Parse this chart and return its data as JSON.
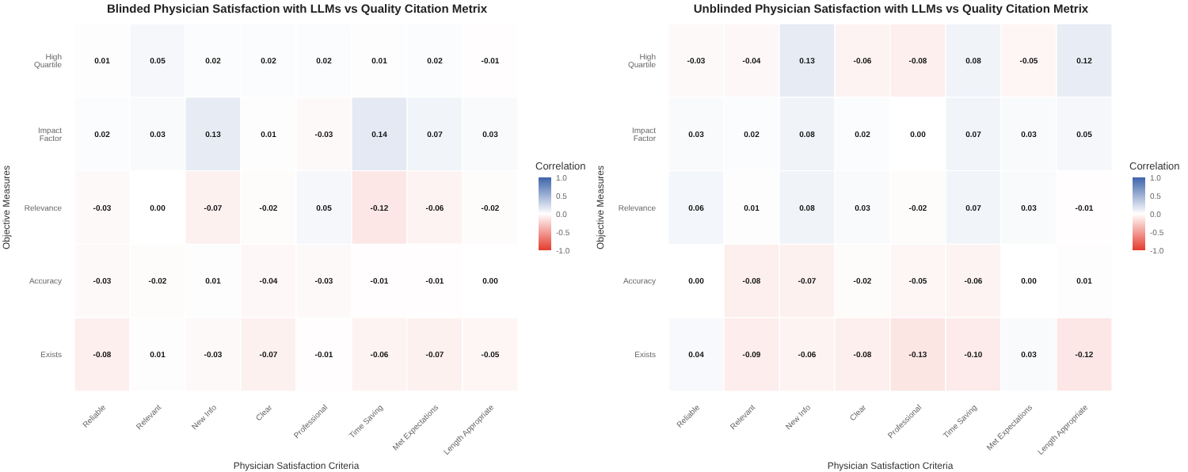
{
  "chart_data": [
    {
      "type": "heatmap",
      "title": "Blinded Physician Satisfaction with LLMs vs Quality Citation Metrix",
      "xlabel": "Physician Satisfaction Criteria",
      "ylabel": "Objective Measures",
      "clabel": "Correlation",
      "categories": [
        "Reliable",
        "Relevant",
        "New Info",
        "Clear",
        "Professional",
        "Time Saving",
        "Met Expectations",
        "Length Appropriate"
      ],
      "y_categories": [
        "High Quartile",
        "Impact Factor",
        "Relevance",
        "Accuracy",
        "Exists"
      ],
      "cells": [
        [
          0.01,
          0.05,
          0.02,
          0.02,
          0.02,
          0.01,
          0.02,
          -0.01
        ],
        [
          0.02,
          0.03,
          0.13,
          0.01,
          -0.03,
          0.14,
          0.07,
          0.03
        ],
        [
          -0.03,
          0.0,
          -0.07,
          -0.02,
          0.05,
          -0.12,
          -0.06,
          -0.02
        ],
        [
          -0.03,
          -0.02,
          0.01,
          -0.04,
          -0.03,
          -0.01,
          -0.01,
          0.0
        ],
        [
          -0.08,
          0.01,
          -0.03,
          -0.07,
          -0.01,
          -0.06,
          -0.07,
          -0.05
        ]
      ],
      "cell_labels": [
        [
          "0.01",
          "0.05",
          "0.02",
          "0.02",
          "0.02",
          "0.01",
          "0.02",
          "-0.01"
        ],
        [
          "0.02",
          "0.03",
          "0.13",
          "0.01",
          "-0.03",
          "0.14",
          "0.07",
          "0.03"
        ],
        [
          "-0.03",
          "0.00",
          "-0.07",
          "-0.02",
          "0.05",
          "-0.12",
          "-0.06",
          "-0.02"
        ],
        [
          "-0.03",
          "-0.02",
          "0.01",
          "-0.04",
          "-0.03",
          "-0.01",
          "-0.01",
          "0.00"
        ],
        [
          "-0.08",
          "0.01",
          "-0.03",
          "-0.07",
          "-0.01",
          "-0.06",
          "-0.07",
          "-0.05"
        ]
      ],
      "clim": [
        -1,
        1
      ],
      "cticks": [
        {
          "value": -1,
          "label": "-1.0"
        },
        {
          "value": -0.5,
          "label": "-0.5"
        },
        {
          "value": 0,
          "label": "0.0"
        },
        {
          "value": 0.5,
          "label": "0.5"
        },
        {
          "value": 1,
          "label": "1.0"
        }
      ],
      "data_labels": true
    },
    {
      "type": "heatmap",
      "title": "Unblinded Physician Satisfaction with LLMs vs Quality Citation Metrix",
      "xlabel": "Physician Satisfaction Criteria",
      "ylabel": "Objective Measures",
      "clabel": "Correlation",
      "categories": [
        "Reliable",
        "Relevant",
        "New Info",
        "Clear",
        "Professional",
        "Time Saving",
        "Met Expectations",
        "Length Appropriate"
      ],
      "y_categories": [
        "High Quartile",
        "Impact Factor",
        "Relevance",
        "Accuracy",
        "Exists"
      ],
      "cells": [
        [
          -0.03,
          -0.04,
          0.13,
          -0.06,
          -0.08,
          0.08,
          -0.05,
          0.12
        ],
        [
          0.03,
          0.02,
          0.08,
          0.02,
          0.0,
          0.07,
          0.03,
          0.05
        ],
        [
          0.06,
          0.01,
          0.08,
          0.03,
          -0.02,
          0.07,
          0.03,
          -0.01
        ],
        [
          0.0,
          -0.08,
          -0.07,
          -0.02,
          -0.05,
          -0.06,
          0.0,
          0.01
        ],
        [
          0.04,
          -0.09,
          -0.06,
          -0.08,
          -0.13,
          -0.1,
          0.03,
          -0.12
        ]
      ],
      "cell_labels": [
        [
          "-0.03",
          "-0.04",
          "0.13",
          "-0.06",
          "-0.08",
          "0.08",
          "-0.05",
          "0.12"
        ],
        [
          "0.03",
          "0.02",
          "0.08",
          "0.02",
          "0.00",
          "0.07",
          "0.03",
          "0.05"
        ],
        [
          "0.06",
          "0.01",
          "0.08",
          "0.03",
          "-0.02",
          "0.07",
          "0.03",
          "-0.01"
        ],
        [
          "0.00",
          "-0.08",
          "-0.07",
          "-0.02",
          "-0.05",
          "-0.06",
          "0.00",
          "0.01"
        ],
        [
          "0.04",
          "-0.09",
          "-0.06",
          "-0.08",
          "-0.13",
          "-0.10",
          "0.03",
          "-0.12"
        ]
      ],
      "clim": [
        -1,
        1
      ],
      "cticks": [
        {
          "value": -1,
          "label": "-1.0"
        },
        {
          "value": -0.5,
          "label": "-0.5"
        },
        {
          "value": 0,
          "label": "0.0"
        },
        {
          "value": 0.5,
          "label": "0.5"
        },
        {
          "value": 1,
          "label": "1.0"
        }
      ],
      "data_labels": true
    }
  ]
}
